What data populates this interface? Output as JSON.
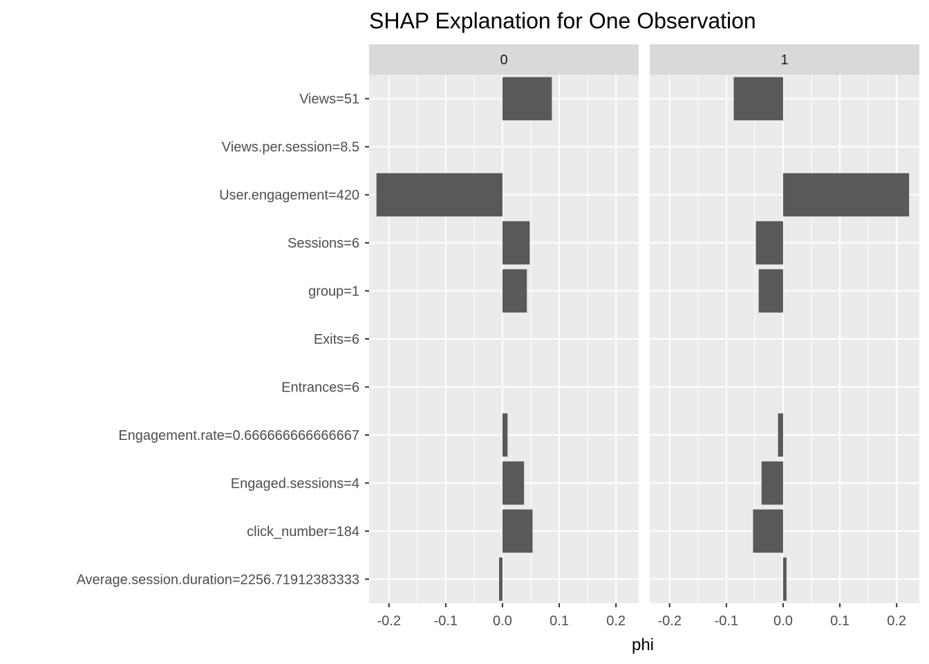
{
  "chart_data": {
    "type": "bar",
    "orientation": "horizontal",
    "title": "SHAP Explanation for One Observation",
    "xlabel": "phi",
    "ylabel": "",
    "xlim": [
      -0.235,
      0.24
    ],
    "x_ticks": [
      -0.2,
      -0.1,
      0.0,
      0.1,
      0.2
    ],
    "x_tick_labels": [
      "-0.2",
      "-0.1",
      "0.0",
      "0.1",
      "0.2"
    ],
    "grid": true,
    "legend": "none",
    "categories": [
      "Views=51",
      "Views.per.session=8.5",
      "User.engagement=420",
      "Sessions=6",
      "group=1",
      "Exits=6",
      "Entrances=6",
      "Engagement.rate=0.666666666666667",
      "Engaged.sessions=4",
      "click_number=184",
      "Average.session.duration=2256.71912383333"
    ],
    "facets": [
      {
        "label": "0",
        "values": [
          0.087,
          0.0,
          -0.222,
          0.048,
          0.043,
          0.0,
          0.0,
          0.009,
          0.038,
          0.053,
          -0.006
        ]
      },
      {
        "label": "1",
        "values": [
          -0.087,
          0.0,
          0.222,
          -0.048,
          -0.043,
          0.0,
          0.0,
          -0.009,
          -0.038,
          -0.053,
          0.006
        ]
      }
    ],
    "colors": {
      "bar": "#595959",
      "panel_bg": "#ebebeb",
      "strip_bg": "#d9d9d9",
      "grid": "#ffffff"
    }
  }
}
